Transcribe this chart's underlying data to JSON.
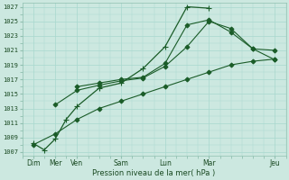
{
  "xlabel": "Pression niveau de la mer( hPa )",
  "bg_color": "#cce8e0",
  "grid_color": "#a8d8ce",
  "line_color": "#1a5c28",
  "ylim": [
    1007,
    1027
  ],
  "yticks": [
    1007,
    1009,
    1011,
    1013,
    1015,
    1017,
    1019,
    1021,
    1023,
    1025,
    1027
  ],
  "x_tick_positions": [
    0,
    1,
    2,
    4,
    6,
    8,
    11
  ],
  "x_tick_labels": [
    "Dim",
    "Mer",
    "Ven",
    "Sam",
    "Lun",
    "Mar",
    "Jeu"
  ],
  "lines": [
    {
      "x": [
        0,
        1,
        2,
        3,
        4,
        5,
        6,
        7,
        8,
        9,
        10,
        11
      ],
      "y": [
        1008.0,
        1009.5,
        1011.5,
        1013.0,
        1014.0,
        1015.0,
        1016.0,
        1017.0,
        1018.0,
        1019.0,
        1019.5,
        1019.8
      ],
      "marker": "D",
      "markersize": 2.5,
      "linewidth": 0.8
    },
    {
      "x": [
        0,
        0.5,
        1,
        1.5,
        2,
        3,
        4,
        5,
        6,
        7,
        8
      ],
      "y": [
        1008.2,
        1007.3,
        1008.8,
        1011.5,
        1013.3,
        1015.8,
        1016.5,
        1018.5,
        1021.5,
        1027.0,
        1026.8
      ],
      "marker": "+",
      "markersize": 4,
      "linewidth": 0.9
    },
    {
      "x": [
        1,
        2,
        3,
        4,
        5,
        6,
        7,
        8,
        9,
        10,
        11
      ],
      "y": [
        1013.5,
        1015.5,
        1016.2,
        1016.8,
        1017.2,
        1018.8,
        1021.5,
        1025.0,
        1024.0,
        1021.2,
        1021.0
      ],
      "marker": "D",
      "markersize": 2.5,
      "linewidth": 0.8
    },
    {
      "x": [
        2,
        3,
        4,
        5,
        6,
        7,
        8,
        9,
        10,
        11
      ],
      "y": [
        1016.0,
        1016.5,
        1017.0,
        1017.3,
        1019.2,
        1024.5,
        1025.2,
        1023.5,
        1021.2,
        1019.7
      ],
      "marker": "D",
      "markersize": 2.5,
      "linewidth": 0.8
    }
  ]
}
